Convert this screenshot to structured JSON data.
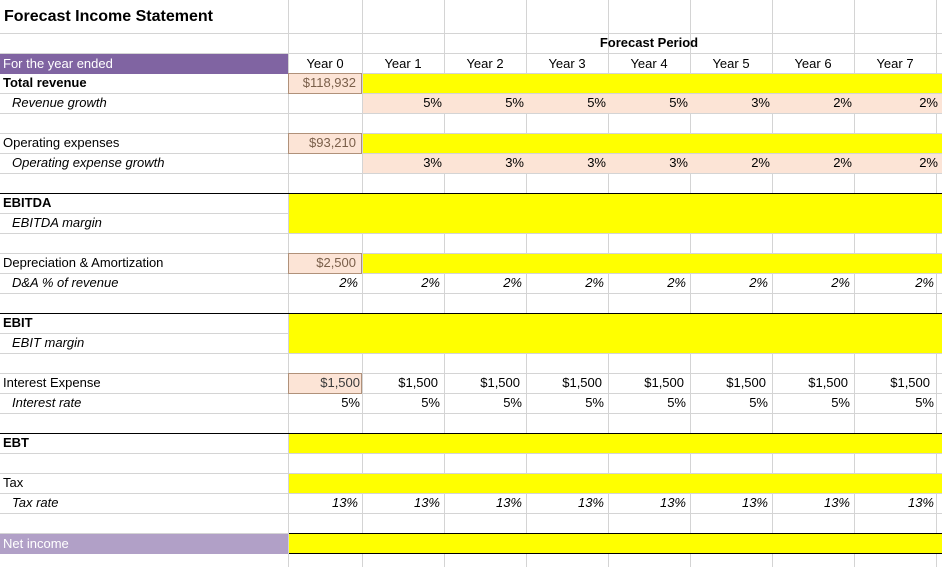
{
  "title": "Forecast Income Statement",
  "forecast_period_label": "Forecast Period",
  "header": {
    "label": "For the year ended",
    "years": [
      "Year 0",
      "Year 1",
      "Year 2",
      "Year 3",
      "Year 4",
      "Year 5",
      "Year 6",
      "Year 7"
    ]
  },
  "rows": {
    "total_revenue": {
      "label": "Total revenue",
      "year0": "$118,932"
    },
    "revenue_growth": {
      "label": "Revenue growth",
      "values": [
        "5%",
        "5%",
        "5%",
        "5%",
        "3%",
        "2%",
        "2%"
      ]
    },
    "operating_expenses": {
      "label": "Operating expenses",
      "year0": "$93,210"
    },
    "opex_growth": {
      "label": "Operating expense growth",
      "values": [
        "3%",
        "3%",
        "3%",
        "3%",
        "2%",
        "2%",
        "2%"
      ]
    },
    "ebitda": {
      "label": "EBITDA"
    },
    "ebitda_margin": {
      "label": "EBITDA margin"
    },
    "da": {
      "label": "Depreciation & Amortization",
      "year0": "$2,500"
    },
    "da_pct": {
      "label": "D&A % of revenue",
      "values": [
        "2%",
        "2%",
        "2%",
        "2%",
        "2%",
        "2%",
        "2%",
        "2%"
      ]
    },
    "ebit": {
      "label": "EBIT"
    },
    "ebit_margin": {
      "label": "EBIT margin"
    },
    "interest_expense": {
      "label": "Interest Expense",
      "values": [
        "$1,500",
        "$1,500",
        "$1,500",
        "$1,500",
        "$1,500",
        "$1,500",
        "$1,500",
        "$1,500"
      ]
    },
    "interest_rate": {
      "label": "Interest rate",
      "values": [
        "5%",
        "5%",
        "5%",
        "5%",
        "5%",
        "5%",
        "5%",
        "5%"
      ]
    },
    "ebt": {
      "label": "EBT"
    },
    "tax": {
      "label": "Tax"
    },
    "tax_rate": {
      "label": "Tax rate",
      "values": [
        "13%",
        "13%",
        "13%",
        "13%",
        "13%",
        "13%",
        "13%",
        "13%"
      ]
    },
    "net_income": {
      "label": "Net income"
    }
  },
  "colors": {
    "header_purple": "#8064a2",
    "net_income_purple": "#b1a0c7",
    "input_yellow": "#ffff00",
    "assumption_peach": "#fce4d6"
  }
}
